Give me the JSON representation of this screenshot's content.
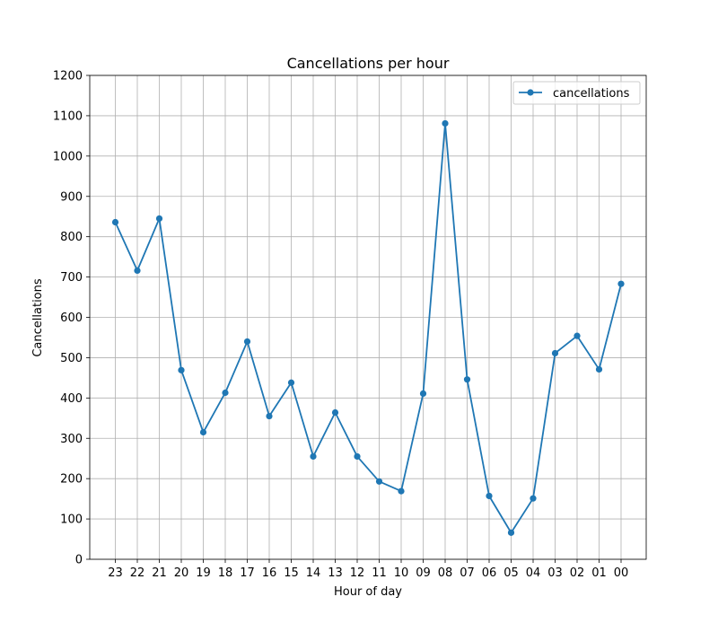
{
  "chart_data": {
    "type": "line",
    "title": "Cancellations per hour",
    "xlabel": "Hour of day",
    "ylabel": "Cancellations",
    "categories": [
      "23",
      "22",
      "21",
      "20",
      "19",
      "18",
      "17",
      "16",
      "15",
      "14",
      "13",
      "12",
      "11",
      "10",
      "09",
      "08",
      "07",
      "06",
      "05",
      "04",
      "03",
      "02",
      "01",
      "00"
    ],
    "series": [
      {
        "name": "cancellations",
        "color": "#1f77b4",
        "values": [
          836,
          716,
          845,
          469,
          315,
          413,
          540,
          355,
          438,
          255,
          364,
          255,
          193,
          169,
          411,
          1081,
          446,
          157,
          66,
          151,
          511,
          554,
          471,
          683
        ]
      }
    ],
    "ylim": [
      0,
      1200
    ],
    "yticks": [
      0,
      100,
      200,
      300,
      400,
      500,
      600,
      700,
      800,
      900,
      1000,
      1100,
      1200
    ],
    "grid": true,
    "legend_position": "top-right"
  }
}
